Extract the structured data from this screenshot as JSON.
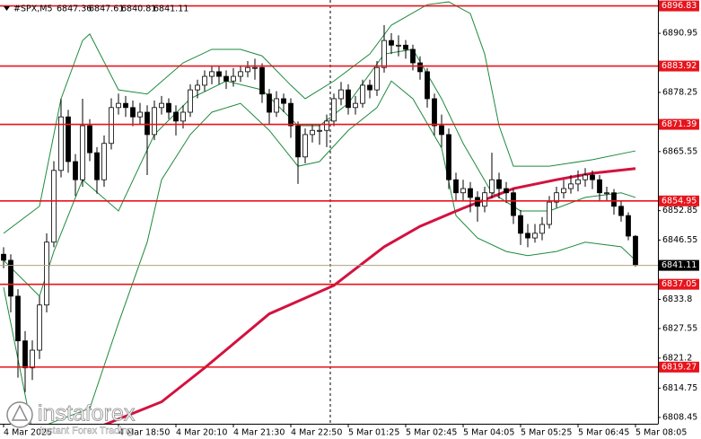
{
  "header": {
    "symbol": "#SPX,M5"
  },
  "logo": {
    "brand": "instaforex",
    "tagline": "Instant Forex Trading"
  },
  "chart_data": {
    "type": "candlestick",
    "up_color": "#ffffff",
    "down_color": "#000000",
    "wick_color": "#000000",
    "ylim": [
      6807.1,
      6898.1
    ],
    "yticks": [
      6890.95,
      6878.25,
      6865.55,
      6852.85,
      6846.55,
      6833.8,
      6827.55,
      6821.2,
      6814.75,
      6808.45
    ],
    "xticks": [
      {
        "value": 0,
        "label": "4 Mar 2025"
      },
      {
        "value": 16,
        "label": "4 Mar 18:50"
      },
      {
        "value": 24,
        "label": "4 Mar 20:10"
      },
      {
        "value": 32,
        "label": "4 Mar 21:30"
      },
      {
        "value": 40,
        "label": "4 Mar 22:50"
      },
      {
        "value": 48,
        "label": "5 Mar 01:25"
      },
      {
        "value": 56,
        "label": "5 Mar 02:45"
      },
      {
        "value": 64,
        "label": "5 Mar 04:05"
      },
      {
        "value": 72,
        "label": "5 Mar 05:25"
      },
      {
        "value": 80,
        "label": "5 Mar 06:45"
      },
      {
        "value": 88,
        "label": "5 Mar 08:05"
      }
    ],
    "levels": {
      "color": "#e8141c",
      "values": [
        6896.83,
        6883.92,
        6871.39,
        6854.95,
        6837.05,
        6819.27
      ]
    },
    "price_line_color": "#b0a080",
    "candles": [
      [
        6843.5,
        6845.0,
        6840.5,
        6842.2
      ],
      [
        6842.2,
        6843.5,
        6831.0,
        6834.5
      ],
      [
        6834.5,
        6836.0,
        6817.0,
        6824.9
      ],
      [
        6824.9,
        6827.0,
        6813.9,
        6819.1
      ],
      [
        6819.1,
        6825.0,
        6816.5,
        6822.9
      ],
      [
        6822.9,
        6834.5,
        6821.0,
        6832.6
      ],
      [
        6832.6,
        6848.0,
        6831.0,
        6846.1
      ],
      [
        6846.1,
        6863.5,
        6845.0,
        6861.5
      ],
      [
        6861.5,
        6876.9,
        6860.0,
        6873.0
      ],
      [
        6873.0,
        6874.5,
        6861.0,
        6863.4
      ],
      [
        6863.4,
        6865.0,
        6856.0,
        6859.5
      ],
      [
        6859.5,
        6876.9,
        6858.0,
        6871.1
      ],
      [
        6871.1,
        6872.5,
        6863.5,
        6865.3
      ],
      [
        6865.3,
        6866.5,
        6856.5,
        6859.5
      ],
      [
        6859.5,
        6869.0,
        6858.0,
        6867.3
      ],
      [
        6867.3,
        6877.0,
        6866.0,
        6875.0
      ],
      [
        6875.0,
        6878.0,
        6873.5,
        6875.9
      ],
      [
        6875.9,
        6877.5,
        6873.0,
        6875.0
      ],
      [
        6875.0,
        6876.5,
        6871.0,
        6873.0
      ],
      [
        6873.0,
        6876.0,
        6871.5,
        6874.0
      ],
      [
        6874.0,
        6875.5,
        6860.5,
        6869.2
      ],
      [
        6869.2,
        6876.5,
        6868.0,
        6875.0
      ],
      [
        6875.0,
        6877.5,
        6873.5,
        6875.9
      ],
      [
        6875.9,
        6877.0,
        6872.5,
        6874.0
      ],
      [
        6874.0,
        6875.5,
        6869.0,
        6872.1
      ],
      [
        6872.1,
        6875.5,
        6870.5,
        6874.0
      ],
      [
        6874.0,
        6880.0,
        6873.0,
        6878.8
      ],
      [
        6878.8,
        6881.0,
        6877.0,
        6879.8
      ],
      [
        6879.8,
        6883.0,
        6878.5,
        6881.7
      ],
      [
        6881.7,
        6884.0,
        6880.0,
        6882.7
      ],
      [
        6882.7,
        6884.0,
        6880.0,
        6881.7
      ],
      [
        6881.7,
        6883.0,
        6879.0,
        6880.7
      ],
      [
        6880.7,
        6883.5,
        6879.5,
        6881.7
      ],
      [
        6881.7,
        6884.0,
        6880.5,
        6882.7
      ],
      [
        6882.7,
        6885.0,
        6881.5,
        6883.6
      ],
      [
        6883.6,
        6885.5,
        6881.0,
        6883.6
      ],
      [
        6883.6,
        6884.5,
        6876.0,
        6877.9
      ],
      [
        6877.9,
        6879.0,
        6871.5,
        6874.0
      ],
      [
        6874.0,
        6878.5,
        6873.0,
        6876.9
      ],
      [
        6876.9,
        6878.0,
        6874.0,
        6875.9
      ],
      [
        6875.9,
        6877.0,
        6868.5,
        6871.1
      ],
      [
        6871.1,
        6872.0,
        6858.6,
        6864.4
      ],
      [
        6864.4,
        6870.5,
        6863.0,
        6869.2
      ],
      [
        6869.2,
        6871.5,
        6867.5,
        6870.1
      ],
      [
        6870.1,
        6871.5,
        6867.0,
        6870.1
      ],
      [
        6870.1,
        6873.5,
        6866.5,
        6872.1
      ],
      [
        6872.1,
        6878.0,
        6871.0,
        6876.9
      ],
      [
        6876.9,
        6880.5,
        6875.5,
        6878.8
      ],
      [
        6878.8,
        6880.0,
        6873.5,
        6875.0
      ],
      [
        6875.0,
        6877.5,
        6873.5,
        6875.9
      ],
      [
        6875.9,
        6881.0,
        6875.0,
        6879.8
      ],
      [
        6879.8,
        6881.0,
        6877.0,
        6878.8
      ],
      [
        6878.8,
        6885.0,
        6877.5,
        6883.6
      ],
      [
        6883.6,
        6892.7,
        6882.5,
        6889.4
      ],
      [
        6889.4,
        6891.0,
        6886.5,
        6888.4
      ],
      [
        6888.4,
        6890.5,
        6886.0,
        6888.4
      ],
      [
        6888.4,
        6889.5,
        6885.5,
        6887.5
      ],
      [
        6887.5,
        6888.5,
        6883.0,
        6884.6
      ],
      [
        6884.6,
        6886.0,
        6881.0,
        6882.7
      ],
      [
        6882.7,
        6883.5,
        6875.0,
        6876.9
      ],
      [
        6876.9,
        6878.0,
        6869.0,
        6871.1
      ],
      [
        6871.1,
        6873.5,
        6866.5,
        6869.2
      ],
      [
        6869.2,
        6870.5,
        6857.5,
        6859.5
      ],
      [
        6859.5,
        6861.0,
        6855.0,
        6856.7
      ],
      [
        6856.7,
        6859.5,
        6855.0,
        6857.6
      ],
      [
        6857.6,
        6859.0,
        6852.5,
        6855.7
      ],
      [
        6855.7,
        6857.0,
        6850.5,
        6853.8
      ],
      [
        6853.8,
        6858.0,
        6852.5,
        6856.7
      ],
      [
        6856.7,
        6865.3,
        6855.5,
        6859.5
      ],
      [
        6859.5,
        6861.0,
        6855.5,
        6857.6
      ],
      [
        6857.6,
        6859.0,
        6854.5,
        6856.7
      ],
      [
        6856.7,
        6857.5,
        6850.0,
        6851.8
      ],
      [
        6851.8,
        6853.0,
        6845.5,
        6848.0
      ],
      [
        6848.0,
        6850.0,
        6845.0,
        6847.0
      ],
      [
        6847.0,
        6850.0,
        6846.0,
        6848.0
      ],
      [
        6848.0,
        6851.5,
        6846.5,
        6849.9
      ],
      [
        6849.9,
        6856.0,
        6849.0,
        6854.7
      ],
      [
        6854.7,
        6858.0,
        6853.5,
        6856.7
      ],
      [
        6856.7,
        6859.5,
        6855.5,
        6857.6
      ],
      [
        6857.6,
        6860.5,
        6856.5,
        6858.6
      ],
      [
        6858.6,
        6861.5,
        6857.0,
        6859.5
      ],
      [
        6859.5,
        6862.0,
        6858.0,
        6860.5
      ],
      [
        6860.5,
        6861.5,
        6857.5,
        6859.5
      ],
      [
        6859.5,
        6860.5,
        6855.0,
        6856.7
      ],
      [
        6856.7,
        6858.0,
        6855.0,
        6856.7
      ],
      [
        6856.7,
        6857.5,
        6852.0,
        6853.8
      ],
      [
        6853.8,
        6855.0,
        6850.5,
        6851.8
      ],
      [
        6851.8,
        6852.5,
        6846.5,
        6847.4
      ],
      [
        6847.36,
        6847.61,
        6840.81,
        6841.11
      ]
    ],
    "series": [
      {
        "color": "#1e8a3c",
        "width": 1,
        "x": [
          0,
          5,
          8,
          11,
          12,
          16,
          20,
          25,
          29,
          33,
          36,
          40,
          42,
          46,
          51,
          54,
          59,
          62,
          65,
          67,
          69,
          71,
          76,
          82,
          88
        ],
        "values": [
          6848.0,
          6853.8,
          6876.9,
          6889.4,
          6890.8,
          6878.8,
          6877.9,
          6884.6,
          6887.5,
          6887.5,
          6886.1,
          6879.8,
          6876.9,
          6880.7,
          6886.5,
          6892.7,
          6897.1,
          6897.7,
          6895.2,
          6886.5,
          6871.1,
          6862.4,
          6862.4,
          6863.8,
          6865.7
        ]
      },
      {
        "color": "#1e8a3c",
        "width": 1,
        "x": [
          0,
          5,
          7,
          11,
          16,
          21,
          26,
          31,
          36,
          41,
          44,
          48,
          53,
          57,
          61,
          64,
          68,
          72,
          76,
          81,
          86,
          88
        ],
        "values": [
          6842.2,
          6834.5,
          6844.1,
          6859.5,
          6852.8,
          6869.2,
          6876.9,
          6880.7,
          6878.8,
          6871.1,
          6871.1,
          6875.9,
          6886.5,
          6887.5,
          6876.9,
          6867.3,
          6856.7,
          6852.8,
          6852.8,
          6855.7,
          6856.7,
          6855.7
        ]
      },
      {
        "color": "#1e8a3c",
        "width": 1,
        "x": [
          0,
          4,
          7,
          12,
          16,
          20,
          22,
          26,
          29,
          33,
          37,
          41,
          44,
          48,
          52,
          54,
          57,
          61,
          63,
          66,
          70,
          73,
          77,
          81,
          86,
          88
        ],
        "values": [
          6836.4,
          6805.6,
          6807.5,
          6810.4,
          6828.7,
          6846.1,
          6859.5,
          6869.2,
          6874.0,
          6875.9,
          6870.1,
          6862.4,
          6863.4,
          6870.1,
          6875.0,
          6880.7,
          6876.9,
          6866.3,
          6851.8,
          6847.0,
          6844.1,
          6843.2,
          6844.1,
          6846.1,
          6845.1,
          6842.2
        ]
      },
      {
        "color": "#d3123f",
        "width": 3,
        "x": [
          12,
          22,
          28,
          37,
          46,
          53,
          58,
          64,
          71,
          77,
          82,
          88
        ],
        "values": [
          6805.6,
          6811.8,
          6819.1,
          6830.7,
          6836.8,
          6845.1,
          6849.5,
          6853.4,
          6857.6,
          6859.5,
          6860.9,
          6861.9
        ]
      }
    ]
  }
}
